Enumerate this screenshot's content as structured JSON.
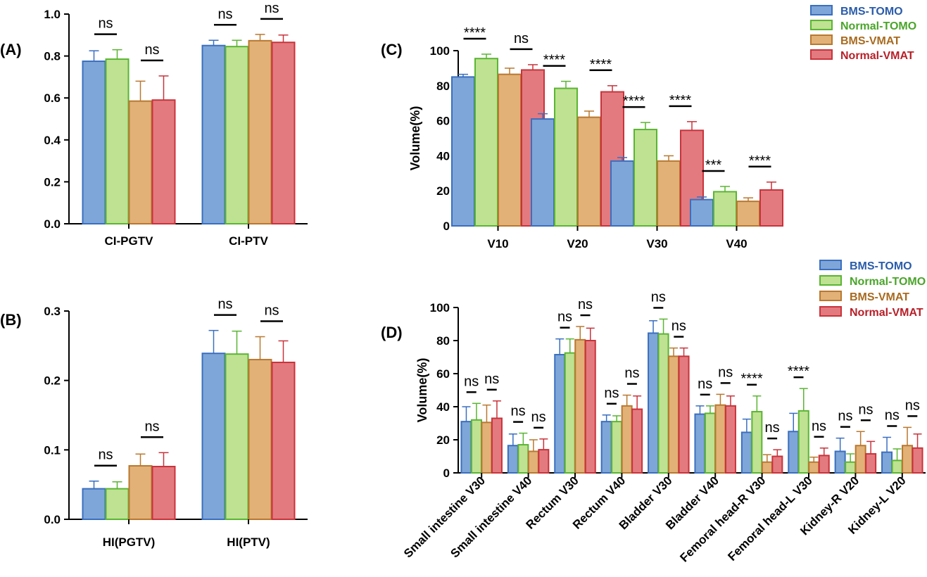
{
  "colors": {
    "bms_tomo_fill": "#7fa6d8",
    "bms_tomo_stroke": "#3a6fc0",
    "normal_tomo_fill": "#bfe292",
    "normal_tomo_stroke": "#5ab532",
    "bms_vmat_fill": "#e2b177",
    "bms_vmat_stroke": "#b9782f",
    "normal_vmat_fill": "#e37a7f",
    "normal_vmat_stroke": "#c9333b",
    "legend_text_bms_tomo": "#2a5caa",
    "legend_text_normal_tomo": "#4aa52a",
    "legend_text_bms_vmat": "#a86a1e",
    "legend_text_normal_vmat": "#b81f28"
  },
  "chart_data": [
    {
      "panel": "(A)",
      "type": "bar",
      "categories": [
        "CI-PGTV",
        "CI-PTV"
      ],
      "series": [
        {
          "name": "BMS-TOMO",
          "values": [
            0.775,
            0.85
          ],
          "errors": [
            0.05,
            0.025
          ]
        },
        {
          "name": "Normal-TOMO",
          "values": [
            0.785,
            0.845
          ],
          "errors": [
            0.045,
            0.03
          ]
        },
        {
          "name": "BMS-VMAT",
          "values": [
            0.585,
            0.873
          ],
          "errors": [
            0.095,
            0.03
          ]
        },
        {
          "name": "Normal-VMAT",
          "values": [
            0.59,
            0.865
          ],
          "errors": [
            0.115,
            0.035
          ]
        }
      ],
      "ylim": [
        0,
        1.0
      ],
      "yticks": [
        "0.0",
        "0.2",
        "0.4",
        "0.6",
        "0.8",
        "1.0"
      ],
      "ytick_values": [
        0,
        0.2,
        0.4,
        0.6,
        0.8,
        1.0
      ],
      "ylabel": "",
      "significance": [
        {
          "category": 0,
          "pair": [
            0,
            1
          ],
          "label": "ns"
        },
        {
          "category": 0,
          "pair": [
            2,
            3
          ],
          "label": "ns"
        },
        {
          "category": 1,
          "pair": [
            0,
            1
          ],
          "label": "ns"
        },
        {
          "category": 1,
          "pair": [
            2,
            3
          ],
          "label": "ns"
        }
      ]
    },
    {
      "panel": "(B)",
      "type": "bar",
      "categories": [
        "HI(PGTV)",
        "HI(PTV)"
      ],
      "series": [
        {
          "name": "BMS-TOMO",
          "values": [
            0.044,
            0.239
          ],
          "errors": [
            0.011,
            0.033
          ]
        },
        {
          "name": "Normal-TOMO",
          "values": [
            0.044,
            0.238
          ],
          "errors": [
            0.01,
            0.033
          ]
        },
        {
          "name": "BMS-VMAT",
          "values": [
            0.077,
            0.23
          ],
          "errors": [
            0.017,
            0.033
          ]
        },
        {
          "name": "Normal-VMAT",
          "values": [
            0.076,
            0.226
          ],
          "errors": [
            0.02,
            0.031
          ]
        }
      ],
      "ylim": [
        0,
        0.3
      ],
      "yticks": [
        "0.0",
        "0.1",
        "0.2",
        "0.3"
      ],
      "ytick_values": [
        0,
        0.1,
        0.2,
        0.3
      ],
      "ylabel": "",
      "significance": [
        {
          "category": 0,
          "pair": [
            0,
            1
          ],
          "label": "ns"
        },
        {
          "category": 0,
          "pair": [
            2,
            3
          ],
          "label": "ns"
        },
        {
          "category": 1,
          "pair": [
            0,
            1
          ],
          "label": "ns"
        },
        {
          "category": 1,
          "pair": [
            2,
            3
          ],
          "label": "ns"
        }
      ]
    },
    {
      "panel": "(C)",
      "type": "bar",
      "categories": [
        "V10",
        "V20",
        "V30",
        "V40"
      ],
      "series": [
        {
          "name": "BMS-TOMO",
          "values": [
            85,
            61,
            37,
            15
          ],
          "errors": [
            1.5,
            3,
            2,
            1.5
          ]
        },
        {
          "name": "Normal-TOMO",
          "values": [
            95.5,
            78.5,
            55,
            19.5
          ],
          "errors": [
            2.5,
            4,
            4,
            3
          ]
        },
        {
          "name": "BMS-VMAT",
          "values": [
            86.5,
            62,
            37,
            14
          ],
          "errors": [
            3.5,
            3.5,
            3,
            2
          ]
        },
        {
          "name": "Normal-VMAT",
          "values": [
            89,
            76.5,
            54.5,
            20.5
          ],
          "errors": [
            3,
            3.5,
            5,
            4.5
          ]
        }
      ],
      "ylim": [
        0,
        100
      ],
      "yticks": [
        "0",
        "20",
        "40",
        "60",
        "80",
        "100"
      ],
      "ytick_values": [
        0,
        20,
        40,
        60,
        80,
        100
      ],
      "ylabel": "Volume(%)",
      "significance": [
        {
          "category": 0,
          "pair": [
            0,
            1
          ],
          "label": "****"
        },
        {
          "category": 0,
          "pair": [
            2,
            3
          ],
          "label": "ns"
        },
        {
          "category": 1,
          "pair": [
            0,
            1
          ],
          "label": "****"
        },
        {
          "category": 1,
          "pair": [
            2,
            3
          ],
          "label": "****"
        },
        {
          "category": 2,
          "pair": [
            0,
            1
          ],
          "label": "****"
        },
        {
          "category": 2,
          "pair": [
            2,
            3
          ],
          "label": "****"
        },
        {
          "category": 3,
          "pair": [
            0,
            1
          ],
          "label": "***"
        },
        {
          "category": 3,
          "pair": [
            2,
            3
          ],
          "label": "****"
        }
      ]
    },
    {
      "panel": "(D)",
      "type": "bar",
      "categories": [
        "Small intestine V30",
        "Small intestine V40",
        "Rectum V30",
        "Rectum V40",
        "Bladder V30",
        "Bladder V40",
        "Femoral head-R V30",
        "Femoral head-L V30",
        "Kidney-R V20",
        "Kidney-L V20"
      ],
      "series": [
        {
          "name": "BMS-TOMO",
          "values": [
            31,
            16.5,
            71.5,
            31,
            84.5,
            35.5,
            24.5,
            25,
            13,
            12.5
          ],
          "errors": [
            9,
            7,
            9.5,
            4,
            7.5,
            5,
            8,
            11,
            8,
            9
          ]
        },
        {
          "name": "Normal-TOMO",
          "values": [
            32,
            17,
            72.5,
            31,
            84,
            36,
            37,
            37.5,
            6.5,
            7.5
          ],
          "errors": [
            10,
            7,
            8.5,
            3.5,
            9,
            4.5,
            9.5,
            13.5,
            5,
            7
          ]
        },
        {
          "name": "BMS-VMAT",
          "values": [
            30.5,
            13,
            80.5,
            40.5,
            70.5,
            41,
            6.5,
            6.5,
            16.5,
            16.5
          ],
          "errors": [
            10.5,
            7,
            8,
            6.5,
            5,
            6.5,
            4.5,
            3,
            8.5,
            11
          ]
        },
        {
          "name": "Normal-VMAT",
          "values": [
            33,
            14,
            80,
            38.5,
            70.5,
            40.5,
            10,
            10.5,
            11.5,
            15
          ],
          "errors": [
            10.5,
            6.5,
            7.5,
            8,
            5,
            6,
            4,
            4.5,
            7.5,
            8.5
          ]
        }
      ],
      "ylim": [
        0,
        100
      ],
      "yticks": [
        "0",
        "20",
        "40",
        "60",
        "80",
        "100"
      ],
      "ytick_values": [
        0,
        20,
        40,
        60,
        80,
        100
      ],
      "ylabel": "Volume(%)",
      "significance": [
        {
          "category": 0,
          "pair": [
            0,
            1
          ],
          "label": "ns"
        },
        {
          "category": 0,
          "pair": [
            2,
            3
          ],
          "label": "ns"
        },
        {
          "category": 1,
          "pair": [
            0,
            1
          ],
          "label": "ns"
        },
        {
          "category": 1,
          "pair": [
            2,
            3
          ],
          "label": "ns"
        },
        {
          "category": 2,
          "pair": [
            0,
            1
          ],
          "label": "ns"
        },
        {
          "category": 2,
          "pair": [
            2,
            3
          ],
          "label": "ns"
        },
        {
          "category": 3,
          "pair": [
            0,
            1
          ],
          "label": "ns"
        },
        {
          "category": 3,
          "pair": [
            2,
            3
          ],
          "label": "ns"
        },
        {
          "category": 4,
          "pair": [
            0,
            1
          ],
          "label": "ns"
        },
        {
          "category": 4,
          "pair": [
            2,
            3
          ],
          "label": "ns"
        },
        {
          "category": 5,
          "pair": [
            0,
            1
          ],
          "label": "ns"
        },
        {
          "category": 5,
          "pair": [
            2,
            3
          ],
          "label": "ns"
        },
        {
          "category": 6,
          "pair": [
            0,
            1
          ],
          "label": "****"
        },
        {
          "category": 6,
          "pair": [
            2,
            3
          ],
          "label": "ns"
        },
        {
          "category": 7,
          "pair": [
            0,
            1
          ],
          "label": "****"
        },
        {
          "category": 7,
          "pair": [
            2,
            3
          ],
          "label": "ns"
        },
        {
          "category": 8,
          "pair": [
            0,
            1
          ],
          "label": "ns"
        },
        {
          "category": 8,
          "pair": [
            2,
            3
          ],
          "label": "ns"
        },
        {
          "category": 9,
          "pair": [
            0,
            1
          ],
          "label": "ns"
        },
        {
          "category": 9,
          "pair": [
            2,
            3
          ],
          "label": "ns"
        }
      ]
    }
  ],
  "legend": [
    "BMS-TOMO",
    "Normal-TOMO",
    "BMS-VMAT",
    "Normal-VMAT"
  ]
}
